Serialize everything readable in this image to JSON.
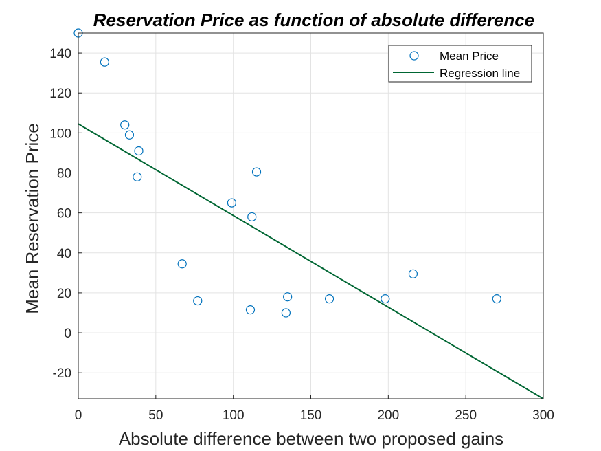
{
  "chart_data": {
    "type": "scatter",
    "title": "Reservation Price as function of absolute difference",
    "xlabel": "Absolute difference between two proposed gains",
    "ylabel": "Mean Reservation Price",
    "xlim": [
      0,
      300
    ],
    "ylim": [
      -33,
      150
    ],
    "xticks": [
      0,
      50,
      100,
      150,
      200,
      250,
      300
    ],
    "yticks": [
      -20,
      0,
      20,
      40,
      60,
      80,
      100,
      120,
      140
    ],
    "grid": true,
    "legend_position": "top-right",
    "series": [
      {
        "name": "Mean Price",
        "type": "scatter",
        "marker": "circle",
        "color": "#0072bd",
        "x": [
          0,
          17,
          30,
          33,
          38,
          39,
          67,
          77,
          99,
          111,
          112,
          115,
          134,
          135,
          162,
          198,
          216,
          270
        ],
        "y": [
          150,
          135.5,
          104,
          99,
          78,
          91,
          34.5,
          16,
          65,
          11.5,
          58,
          80.5,
          10,
          18,
          17,
          17,
          29.5,
          17
        ]
      },
      {
        "name": "Regression line",
        "type": "line",
        "color": "#006633",
        "x": [
          0,
          300
        ],
        "y": [
          104.5,
          -33
        ]
      }
    ]
  }
}
